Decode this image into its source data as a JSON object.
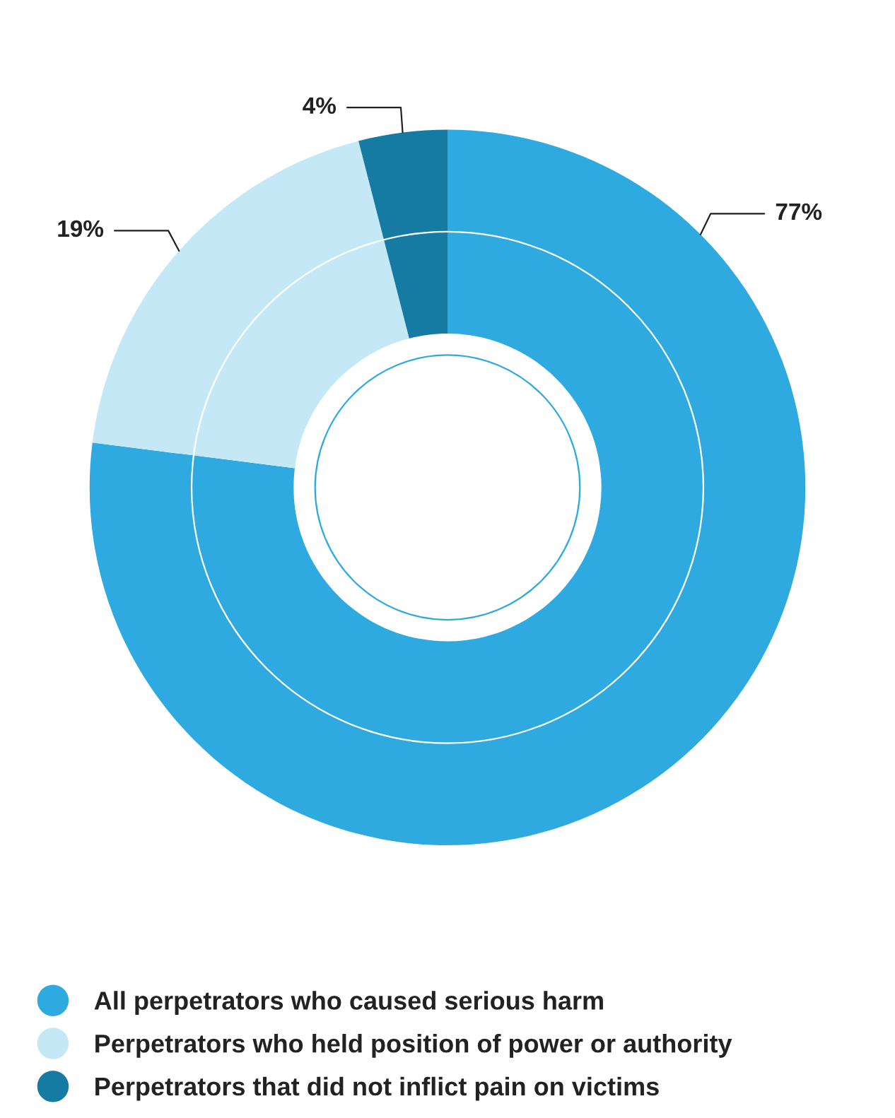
{
  "chart_data": {
    "type": "donut",
    "categories": [
      "All perpetrators who caused serious harm",
      "Perpetrators who held position of power or authority",
      "Perpetrators that did not inflict pain on victims"
    ],
    "values": [
      77,
      19,
      4
    ],
    "value_labels": [
      "77%",
      "19%",
      "4%"
    ],
    "colors": [
      "#2eaae1",
      "#c5e8f7",
      "#167ba3"
    ],
    "legend": "bottom"
  }
}
